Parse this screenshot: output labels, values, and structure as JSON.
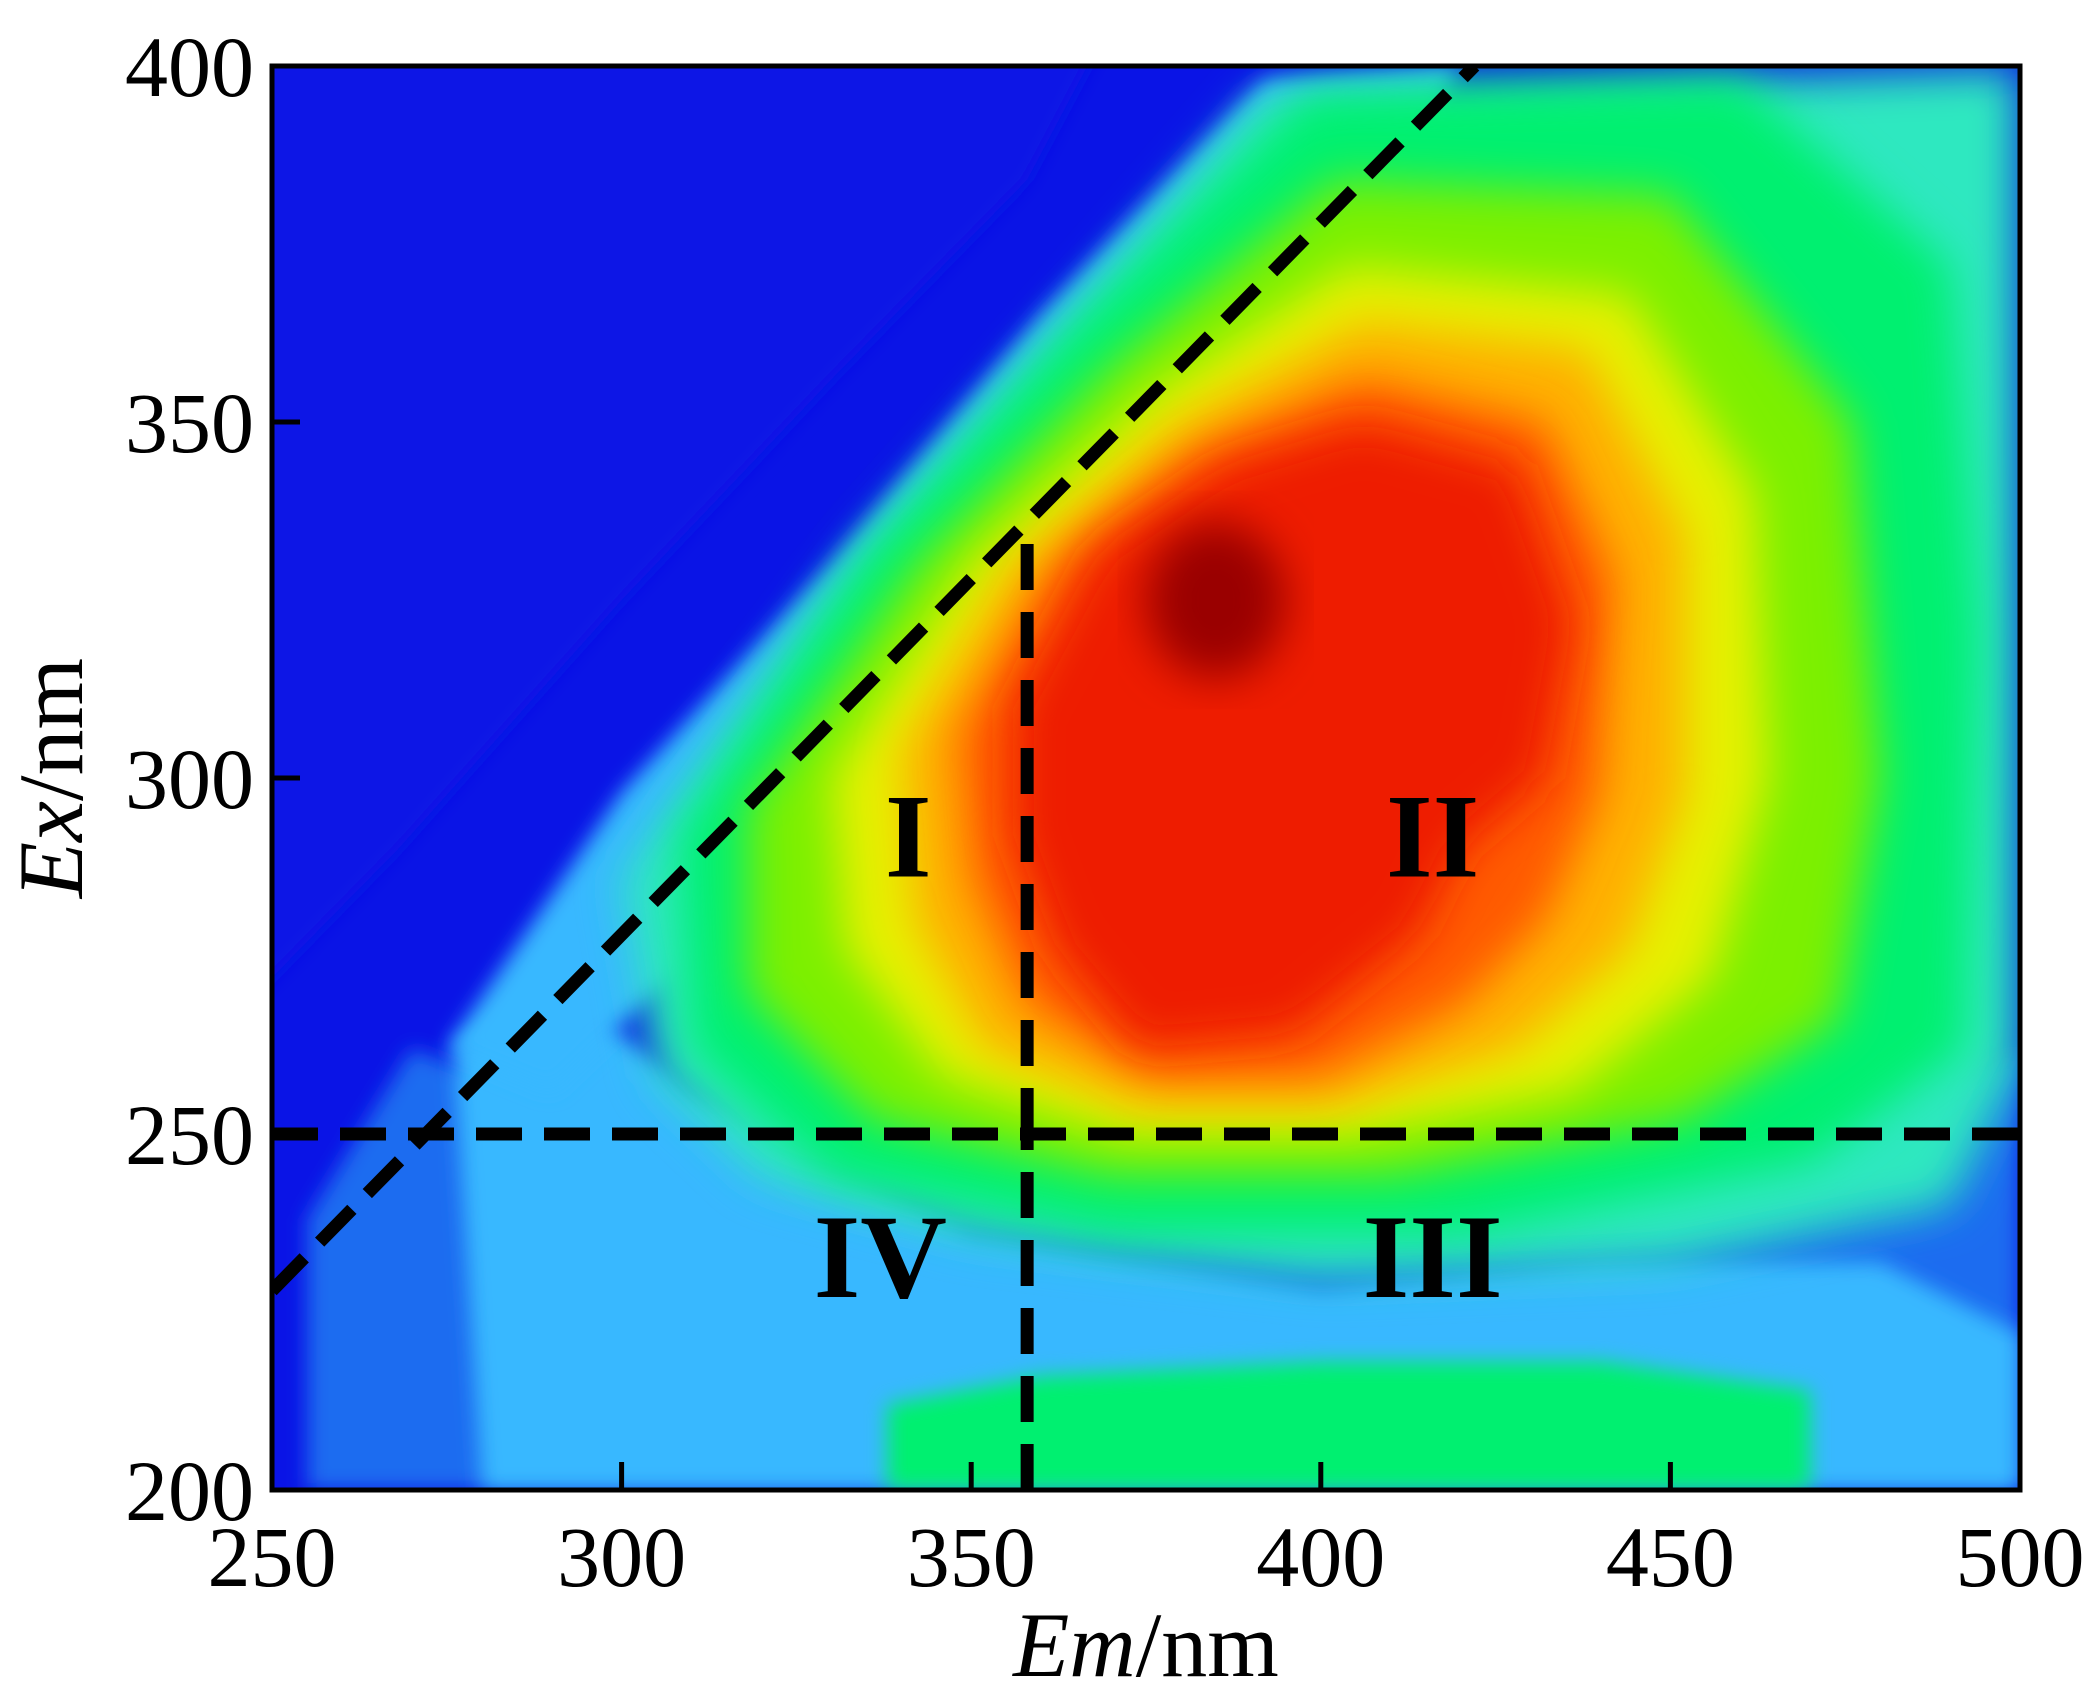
{
  "chart_data": {
    "type": "heatmap",
    "title": "",
    "xlabel": {
      "italic": "Em",
      "unit": "/nm"
    },
    "ylabel": {
      "italic": "Ex",
      "unit": "/nm"
    },
    "xlim": [
      250,
      500
    ],
    "ylim": [
      200,
      400
    ],
    "xticks": [
      "250",
      "300",
      "350",
      "400",
      "450",
      "500"
    ],
    "yticks": [
      "200",
      "250",
      "300",
      "350",
      "400"
    ],
    "colormap": [
      "#0a14e6",
      "#1e6cf0",
      "#38b8ff",
      "#2ee8c0",
      "#00f070",
      "#7cf000",
      "#e6f000",
      "#ffb000",
      "#ff5a00",
      "#ee1c00",
      "#9a0000"
    ],
    "peak": {
      "em": 385,
      "ex": 325
    },
    "region_labels": [
      {
        "text": "I",
        "em": 341,
        "ex": 290
      },
      {
        "text": "II",
        "em": 416,
        "ex": 290
      },
      {
        "text": "III",
        "em": 416,
        "ex": 231
      },
      {
        "text": "IV",
        "em": 337,
        "ex": 231
      }
    ],
    "divider_lines": [
      {
        "name": "horizontal-250",
        "from": {
          "em": 250,
          "ex": 250
        },
        "to": {
          "em": 500,
          "ex": 250
        }
      },
      {
        "name": "vertical-358",
        "from": {
          "em": 358,
          "ex": 200
        },
        "to": {
          "em": 358,
          "ex": 250
        }
      },
      {
        "name": "vertical-358-upper",
        "from": {
          "em": 358,
          "ex": 250
        },
        "to": {
          "em": 358,
          "ex": 334
        }
      },
      {
        "name": "diagonal",
        "from": {
          "em": 250,
          "ex": 228
        },
        "to": {
          "em": 422,
          "ex": 400
        }
      },
      {
        "name": "diagonal-foot",
        "from": {
          "em": 250,
          "ex": 250
        },
        "to": {
          "em": 272,
          "ex": 250
        }
      }
    ]
  }
}
